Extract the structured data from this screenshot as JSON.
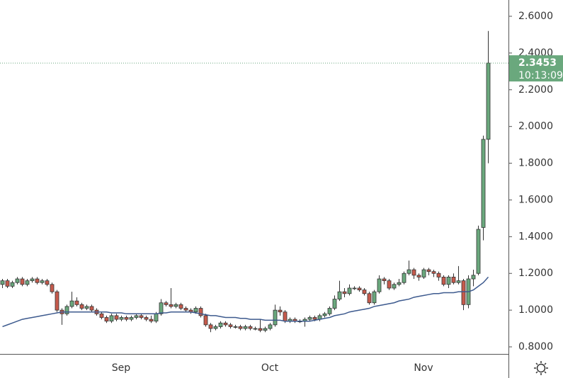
{
  "chart_data": {
    "type": "candlestick",
    "categories": [
      null,
      null,
      null,
      null,
      null,
      null,
      null,
      null,
      null,
      null,
      null,
      null,
      null,
      null,
      null,
      null,
      null,
      null,
      null,
      null,
      null,
      null,
      null,
      null,
      "Sep",
      null,
      null,
      null,
      null,
      null,
      null,
      null,
      null,
      null,
      null,
      null,
      null,
      null,
      null,
      null,
      null,
      null,
      null,
      null,
      null,
      null,
      null,
      null,
      null,
      null,
      null,
      null,
      null,
      null,
      "Oct",
      null,
      null,
      null,
      null,
      null,
      null,
      null,
      null,
      null,
      null,
      null,
      null,
      null,
      null,
      null,
      null,
      null,
      null,
      null,
      null,
      null,
      null,
      null,
      null,
      null,
      null,
      null,
      null,
      null,
      null,
      "Nov",
      null,
      null,
      null,
      null,
      null,
      null,
      null,
      null,
      null,
      null,
      null,
      null,
      null
    ],
    "open": [
      1.14,
      1.16,
      1.13,
      1.15,
      1.17,
      1.14,
      1.16,
      1.17,
      1.15,
      1.16,
      1.14,
      1.1,
      1.0,
      0.98,
      1.02,
      1.05,
      1.03,
      1.01,
      1.02,
      1.0,
      0.98,
      0.96,
      0.94,
      0.97,
      0.95,
      0.96,
      0.95,
      0.96,
      0.97,
      0.96,
      0.95,
      0.94,
      0.98,
      1.04,
      1.03,
      1.02,
      1.03,
      1.01,
      1.0,
      0.99,
      1.01,
      0.97,
      0.92,
      0.9,
      0.91,
      0.93,
      0.92,
      0.91,
      0.91,
      0.9,
      0.91,
      0.9,
      0.9,
      0.89,
      0.9,
      0.92,
      1.0,
      0.99,
      0.94,
      0.95,
      0.94,
      0.94,
      0.95,
      0.96,
      0.95,
      0.97,
      0.98,
      1.01,
      1.06,
      1.1,
      1.09,
      1.12,
      1.12,
      1.11,
      1.09,
      1.04,
      1.1,
      1.17,
      1.16,
      1.12,
      1.14,
      1.15,
      1.2,
      1.22,
      1.19,
      1.18,
      1.22,
      1.21,
      1.2,
      1.18,
      1.14,
      1.18,
      1.15,
      1.16,
      1.03,
      1.17,
      1.2,
      1.45,
      1.93
    ],
    "high": [
      1.17,
      1.17,
      1.16,
      1.18,
      1.18,
      1.17,
      1.18,
      1.18,
      1.17,
      1.17,
      1.15,
      1.11,
      1.01,
      1.03,
      1.1,
      1.07,
      1.04,
      1.03,
      1.03,
      1.01,
      0.99,
      0.97,
      0.98,
      0.98,
      0.97,
      0.97,
      0.97,
      0.98,
      0.98,
      0.97,
      0.97,
      0.99,
      1.06,
      1.05,
      1.12,
      1.04,
      1.04,
      1.02,
      1.01,
      1.02,
      1.02,
      0.98,
      0.93,
      0.92,
      0.94,
      0.94,
      0.93,
      0.92,
      0.92,
      0.92,
      0.92,
      0.91,
      0.95,
      0.91,
      0.93,
      1.03,
      1.02,
      1.0,
      0.96,
      0.96,
      0.95,
      0.96,
      0.97,
      0.97,
      0.98,
      0.99,
      1.02,
      1.08,
      1.16,
      1.12,
      1.14,
      1.13,
      1.13,
      1.12,
      1.1,
      1.11,
      1.19,
      1.18,
      1.17,
      1.15,
      1.17,
      1.21,
      1.27,
      1.23,
      1.2,
      1.23,
      1.23,
      1.22,
      1.21,
      1.19,
      1.19,
      1.2,
      1.24,
      1.17,
      1.19,
      1.22,
      1.46,
      1.95,
      2.52
    ],
    "low": [
      1.12,
      1.12,
      1.12,
      1.14,
      1.13,
      1.13,
      1.15,
      1.14,
      1.14,
      1.13,
      1.09,
      0.99,
      0.92,
      0.97,
      1.01,
      1.02,
      1.0,
      1.0,
      0.99,
      0.97,
      0.95,
      0.93,
      0.93,
      0.94,
      0.94,
      0.94,
      0.94,
      0.95,
      0.95,
      0.94,
      0.93,
      0.93,
      0.97,
      1.02,
      1.01,
      1.01,
      1.0,
      0.99,
      0.98,
      0.98,
      0.96,
      0.91,
      0.88,
      0.89,
      0.9,
      0.91,
      0.9,
      0.9,
      0.89,
      0.89,
      0.89,
      0.89,
      0.88,
      0.88,
      0.89,
      0.91,
      0.97,
      0.93,
      0.93,
      0.93,
      0.93,
      0.91,
      0.94,
      0.94,
      0.94,
      0.96,
      0.97,
      1.0,
      1.05,
      1.07,
      1.08,
      1.11,
      1.1,
      1.08,
      1.03,
      1.03,
      1.09,
      1.14,
      1.11,
      1.11,
      1.13,
      1.14,
      1.19,
      1.17,
      1.16,
      1.17,
      1.19,
      1.18,
      1.16,
      1.13,
      1.12,
      1.14,
      1.14,
      1.0,
      1.01,
      1.13,
      1.19,
      1.38,
      1.8
    ],
    "close": [
      1.16,
      1.13,
      1.15,
      1.17,
      1.14,
      1.16,
      1.17,
      1.15,
      1.16,
      1.14,
      1.1,
      1.0,
      0.98,
      1.02,
      1.05,
      1.03,
      1.01,
      1.02,
      1.0,
      0.98,
      0.96,
      0.94,
      0.97,
      0.95,
      0.96,
      0.95,
      0.96,
      0.97,
      0.96,
      0.95,
      0.94,
      0.98,
      1.04,
      1.03,
      1.02,
      1.03,
      1.01,
      1.0,
      0.99,
      1.01,
      0.97,
      0.92,
      0.9,
      0.91,
      0.93,
      0.92,
      0.91,
      0.91,
      0.9,
      0.91,
      0.9,
      0.9,
      0.89,
      0.9,
      0.92,
      1.0,
      0.99,
      0.94,
      0.95,
      0.94,
      0.94,
      0.95,
      0.96,
      0.95,
      0.97,
      0.98,
      1.01,
      1.06,
      1.1,
      1.09,
      1.12,
      1.12,
      1.11,
      1.09,
      1.04,
      1.1,
      1.17,
      1.16,
      1.12,
      1.14,
      1.15,
      1.2,
      1.22,
      1.19,
      1.18,
      1.22,
      1.21,
      1.2,
      1.18,
      1.14,
      1.18,
      1.15,
      1.16,
      1.03,
      1.17,
      1.19,
      1.44,
      1.93,
      2.3453
    ],
    "up_color": "#6aa87d",
    "down_color": "#c65a4c",
    "moving_average": {
      "color": "#3d5a8e",
      "values": [
        0.91,
        0.92,
        0.93,
        0.94,
        0.95,
        0.955,
        0.96,
        0.965,
        0.97,
        0.975,
        0.98,
        0.985,
        0.99,
        0.99,
        0.99,
        0.99,
        0.99,
        0.99,
        0.99,
        0.99,
        0.99,
        0.99,
        0.985,
        0.985,
        0.985,
        0.98,
        0.98,
        0.98,
        0.98,
        0.98,
        0.98,
        0.98,
        0.985,
        0.985,
        0.99,
        0.99,
        0.99,
        0.99,
        0.99,
        0.985,
        0.98,
        0.975,
        0.97,
        0.97,
        0.965,
        0.96,
        0.96,
        0.96,
        0.955,
        0.955,
        0.95,
        0.95,
        0.95,
        0.945,
        0.945,
        0.945,
        0.945,
        0.94,
        0.94,
        0.94,
        0.94,
        0.94,
        0.94,
        0.945,
        0.95,
        0.955,
        0.96,
        0.97,
        0.975,
        0.98,
        0.99,
        0.995,
        1.0,
        1.005,
        1.01,
        1.02,
        1.025,
        1.03,
        1.035,
        1.04,
        1.05,
        1.055,
        1.06,
        1.07,
        1.075,
        1.08,
        1.085,
        1.09,
        1.09,
        1.095,
        1.095,
        1.095,
        1.1,
        1.1,
        1.1,
        1.11,
        1.13,
        1.15,
        1.18
      ]
    },
    "countdown_label": "10:13:09",
    "ylim": [
      0.7615,
      2.6887
    ],
    "yticks": [
      {
        "value": 0.8,
        "label": "0.8000"
      },
      {
        "value": 1.0,
        "label": "1.0000"
      },
      {
        "value": 1.2,
        "label": "1.2000"
      },
      {
        "value": 1.4,
        "label": "1.4000"
      },
      {
        "value": 1.6,
        "label": "1.6000"
      },
      {
        "value": 1.8,
        "label": "1.8000"
      },
      {
        "value": 2.0,
        "label": "2.0000"
      },
      {
        "value": 2.2,
        "label": "2.2000"
      },
      {
        "value": 2.4,
        "label": "2.4000"
      },
      {
        "value": 2.6,
        "label": "2.6000"
      }
    ],
    "grid": false
  }
}
